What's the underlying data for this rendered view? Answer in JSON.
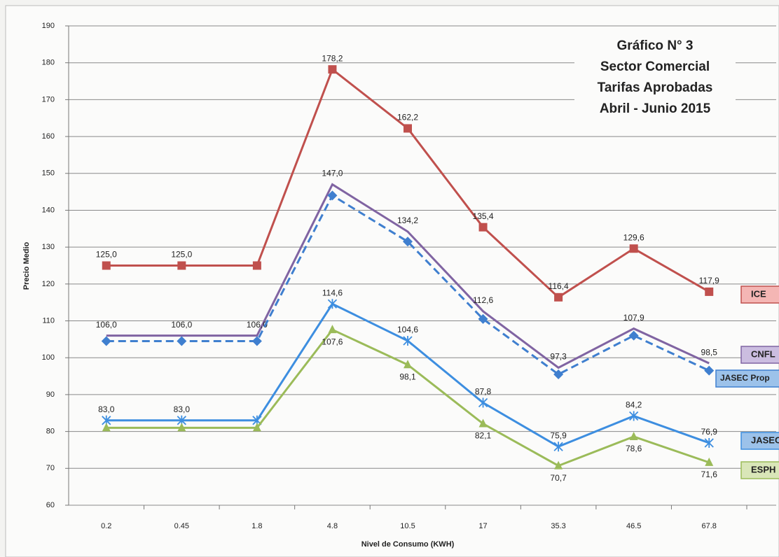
{
  "chart_data": {
    "type": "line",
    "title": [
      "Gráfico N° 3",
      "Sector Comercial",
      "Tarifas Aprobadas",
      "Abril - Junio 2015"
    ],
    "x_label": "Nivel de Consumo (KWH)",
    "y_label": "Precio Medio",
    "categories": [
      "0.2",
      "0.45",
      "1.8",
      "4.8",
      "10.5",
      "17",
      "35.3",
      "46.5",
      "67.8"
    ],
    "ylim": [
      60,
      190
    ],
    "yticks": [
      60,
      70,
      80,
      90,
      100,
      110,
      120,
      130,
      140,
      150,
      160,
      170,
      180,
      190
    ],
    "grid": true,
    "series": [
      {
        "name": "ICE",
        "color": "#c0504d",
        "legend_fill": "#f4b6b4",
        "marker": "square",
        "dash": false,
        "values": [
          125,
          125,
          125,
          178.2,
          162.2,
          135.4,
          116.4,
          129.6,
          117.9
        ],
        "value_labels": [
          "125,0",
          "125,0",
          null,
          "178,2",
          "162,2",
          "135,4",
          "116,4",
          "129,6",
          "117,9"
        ]
      },
      {
        "name": "CNFL",
        "color": "#8064a2",
        "legend_fill": "#cbbde0",
        "marker": "none",
        "dash": false,
        "values": [
          106,
          106,
          106,
          147,
          134.2,
          112.6,
          97.3,
          107.9,
          98.5
        ],
        "value_labels": [
          "106,0",
          "106,0",
          "106,0",
          "147,0",
          "134,2",
          "112,6",
          "97,3",
          "107,9",
          "98,5"
        ]
      },
      {
        "name": "JASEC Prop",
        "color": "#3f7fcf",
        "legend_fill": "#9cc2ea",
        "marker": "diamond",
        "dash": true,
        "values": [
          104.5,
          104.5,
          104.5,
          144,
          131.5,
          110.5,
          95.5,
          106,
          96.5
        ]
      },
      {
        "name": "JASEC",
        "color": "#3d8ee0",
        "legend_fill": "#9cc2ea",
        "marker": "x",
        "dash": false,
        "values": [
          83,
          83,
          83,
          114.6,
          104.6,
          87.8,
          75.9,
          84.2,
          76.9
        ],
        "value_labels": [
          "83,0",
          "83,0",
          null,
          "114,6",
          "104,6",
          "87,8",
          "75,9",
          "84,2",
          "76,9"
        ]
      },
      {
        "name": "ESPH",
        "color": "#9bbb59",
        "legend_fill": "#d9e6b8",
        "marker": "triangle",
        "dash": false,
        "values": [
          81,
          81,
          81,
          107.6,
          98.1,
          82.1,
          70.7,
          78.6,
          71.6
        ],
        "value_labels": [
          null,
          null,
          null,
          "107,6",
          "98,1",
          "82,1",
          "70,7",
          "78,6",
          "71,6"
        ]
      }
    ]
  }
}
